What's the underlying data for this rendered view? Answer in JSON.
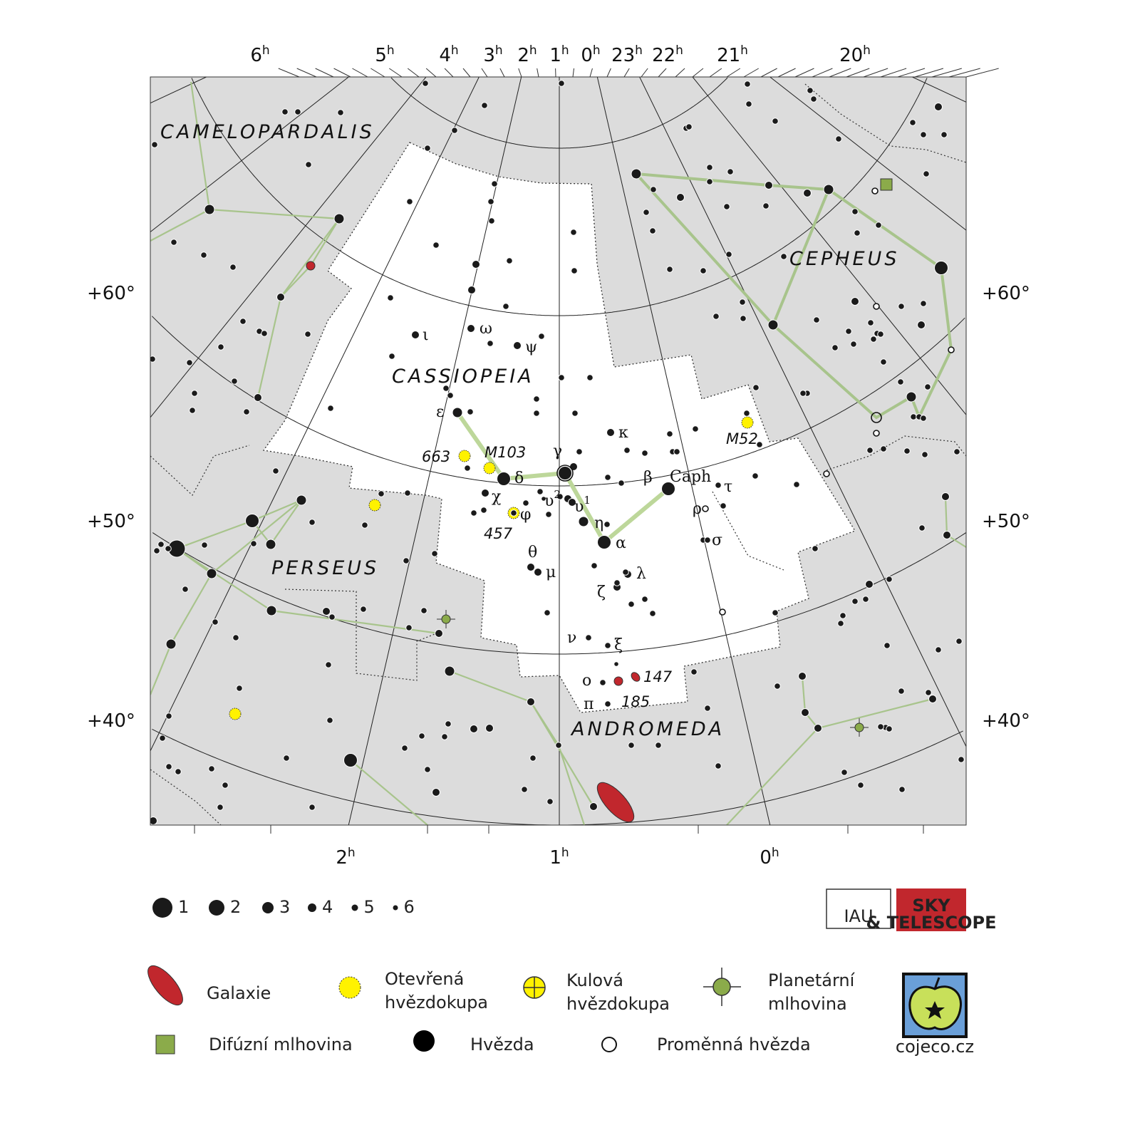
{
  "colors": {
    "sky_background": "#dcdcdc",
    "constellation_area": "#ffffff",
    "main_figure_line": "#bdd79a",
    "figure_line": "#a8c48c",
    "star": "#1a1a1a",
    "galaxy": "#c1272d",
    "open_cluster": "#fff200",
    "nebula": "#8bab4a",
    "sky_logo": "#c1272d",
    "apple_bg": "#6a9fd8",
    "apple": "#c8e05a"
  },
  "axes": {
    "ra_unit": "h",
    "ra_top": [
      "6",
      "5",
      "4",
      "3",
      "2",
      "1",
      "0",
      "23",
      "22",
      "21",
      "20"
    ],
    "ra_bottom": [
      "2",
      "1",
      "0"
    ],
    "dec_left": [
      "+60°",
      "+50°",
      "+40°"
    ],
    "dec_right": [
      "+60°",
      "+50°",
      "+40°"
    ]
  },
  "constellations": {
    "camelopardalis": "CAMELOPARDALIS",
    "cassiopeia": "CASSIOPEIA",
    "cepheus": "CEPHEUS",
    "perseus": "PERSEUS",
    "andromeda": "ANDROMEDA"
  },
  "star_labels": {
    "epsilon": "ε",
    "delta": "δ",
    "gamma": "γ",
    "upsilon2": "υ",
    "upsilon1": "υ",
    "eta": "η",
    "alpha": "α",
    "beta": "β",
    "caph": "Caph",
    "kappa": "κ",
    "chi": "χ",
    "phi": "φ",
    "theta": "θ",
    "mu": "μ",
    "zeta": "ζ",
    "lambda": "λ",
    "nu": "ν",
    "xi": "ξ",
    "omicron": "ο",
    "pi": "π",
    "tau": "τ",
    "rho": "ρ",
    "sigma": "σ",
    "iota": "ι",
    "omega": "ω",
    "psi": "ψ",
    "sup2": "2",
    "sup1": "1"
  },
  "object_labels": {
    "ngc663": "663",
    "m103": "M103",
    "ngc457": "457",
    "m52": "M52",
    "ngc147": "147",
    "ngc185": "185"
  },
  "magnitude_legend": [
    "1",
    "2",
    "3",
    "4",
    "5",
    "6"
  ],
  "legend": {
    "galaxy": [
      "Galaxie"
    ],
    "open_cluster": [
      "Otevřená",
      "hvězdokupa"
    ],
    "globular_cluster": [
      "Kulová",
      "hvězdokupa"
    ],
    "planetary_nebula": [
      "Planetární",
      "mlhovina"
    ],
    "diffuse_nebula": [
      "Difúzní mlhovina"
    ],
    "star": [
      "Hvězda"
    ],
    "variable_star": [
      "Proměnná hvězda"
    ]
  },
  "logos": {
    "iau": "IAU",
    "sky": "SKY",
    "sky_sub": "& TELESCOPE",
    "cojeco": "cojeco.cz"
  }
}
